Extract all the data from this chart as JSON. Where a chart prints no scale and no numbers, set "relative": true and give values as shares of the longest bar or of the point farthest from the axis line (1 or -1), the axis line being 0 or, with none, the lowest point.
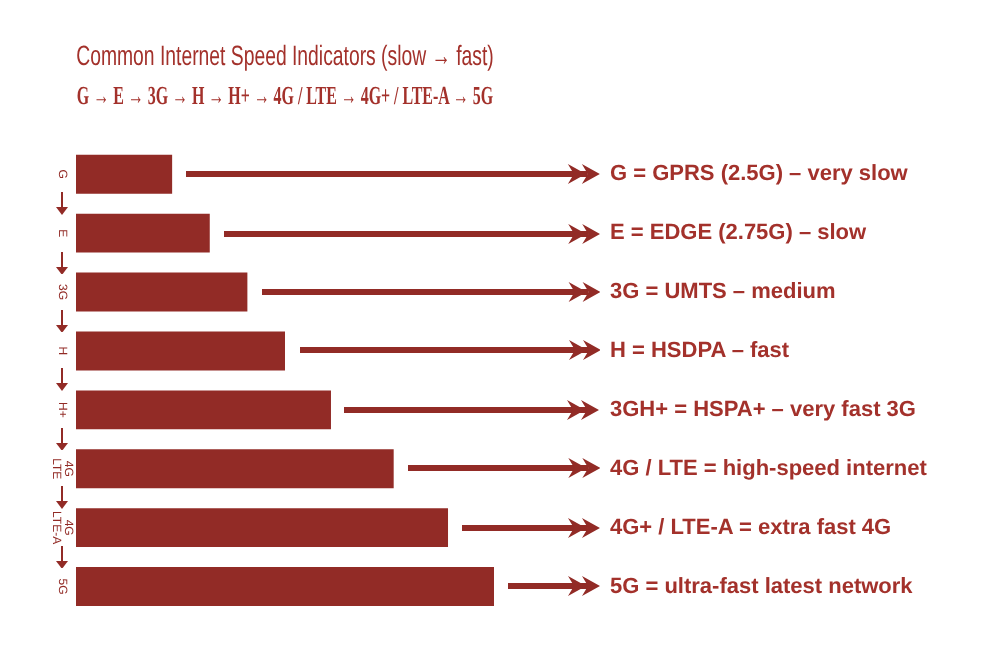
{
  "chart_data": {
    "type": "bar",
    "orientation": "horizontal",
    "relative": true,
    "title": "Common Internet Speed Indicators (slow → fast)",
    "subtitle": "G → E → 3G → H → H+ → 4G / LTE → 4G+ / LTE-A → 5G",
    "categories": [
      "G",
      "E",
      "3G",
      "H",
      "H+",
      "4G LTE",
      "4G LTE-A",
      "5G"
    ],
    "values": [
      0.23,
      0.32,
      0.41,
      0.5,
      0.61,
      0.76,
      0.89,
      1
    ],
    "color": "#922b26",
    "tick_labels": "y",
    "legend": false,
    "annotations": [
      "G = GPRS (2.5G) – very slow",
      "E = EDGE (2.75G) – slow",
      "3G = UMTS – medium",
      "H = HSDPA – fast",
      "3GH+ = HSPA+ – very fast 3G",
      "4G / LTE = high-speed internet",
      "4G+ / LTE-A = extra fast 4G",
      "5G = ultra-fast latest network"
    ]
  }
}
